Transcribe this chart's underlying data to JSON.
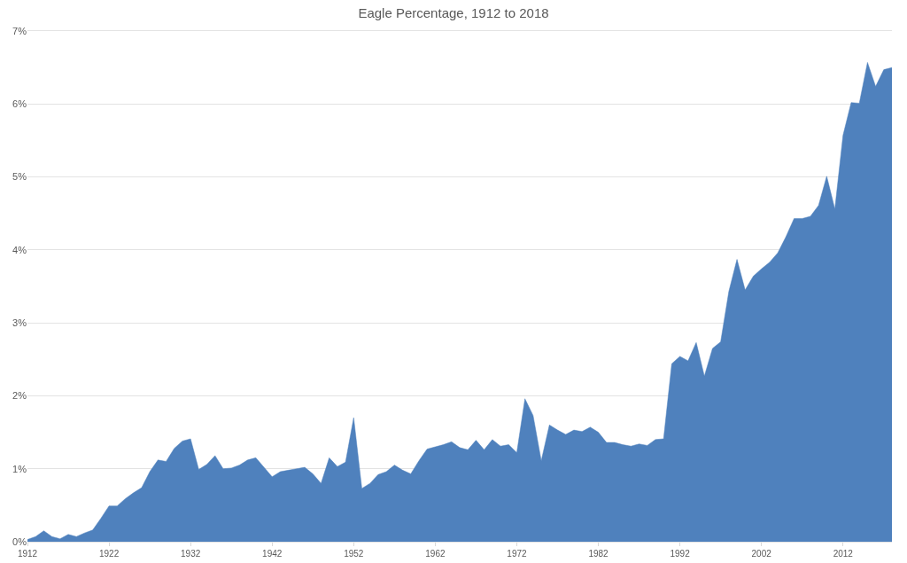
{
  "chart_data": {
    "type": "area",
    "title": "Eagle Percentage, 1912 to 2018",
    "x": [
      1912,
      1913,
      1914,
      1915,
      1916,
      1917,
      1918,
      1919,
      1920,
      1921,
      1922,
      1923,
      1924,
      1925,
      1926,
      1927,
      1928,
      1929,
      1930,
      1931,
      1932,
      1933,
      1934,
      1935,
      1936,
      1937,
      1938,
      1939,
      1940,
      1941,
      1942,
      1943,
      1944,
      1945,
      1946,
      1947,
      1948,
      1949,
      1950,
      1951,
      1952,
      1953,
      1954,
      1955,
      1956,
      1957,
      1958,
      1959,
      1960,
      1961,
      1962,
      1963,
      1964,
      1965,
      1966,
      1967,
      1968,
      1969,
      1970,
      1971,
      1972,
      1973,
      1974,
      1975,
      1976,
      1977,
      1978,
      1979,
      1980,
      1981,
      1982,
      1983,
      1984,
      1985,
      1986,
      1987,
      1988,
      1989,
      1990,
      1991,
      1992,
      1993,
      1994,
      1995,
      1996,
      1997,
      1998,
      1999,
      2000,
      2001,
      2002,
      2003,
      2004,
      2005,
      2006,
      2007,
      2008,
      2009,
      2010,
      2011,
      2012,
      2013,
      2014,
      2015,
      2016,
      2017,
      2018
    ],
    "values": [
      0.03,
      0.07,
      0.15,
      0.07,
      0.04,
      0.1,
      0.07,
      0.12,
      0.16,
      0.32,
      0.49,
      0.49,
      0.59,
      0.67,
      0.74,
      0.96,
      1.12,
      1.1,
      1.28,
      1.38,
      1.41,
      0.99,
      1.06,
      1.18,
      1.0,
      1.01,
      1.05,
      1.12,
      1.15,
      1.02,
      0.89,
      0.96,
      0.98,
      1.0,
      1.02,
      0.93,
      0.8,
      1.15,
      1.03,
      1.09,
      1.7,
      0.73,
      0.8,
      0.92,
      0.96,
      1.05,
      0.98,
      0.93,
      1.11,
      1.27,
      1.3,
      1.33,
      1.37,
      1.29,
      1.26,
      1.39,
      1.26,
      1.4,
      1.31,
      1.33,
      1.22,
      1.96,
      1.73,
      1.11,
      1.6,
      1.53,
      1.47,
      1.53,
      1.51,
      1.57,
      1.5,
      1.36,
      1.36,
      1.33,
      1.31,
      1.34,
      1.32,
      1.4,
      1.41,
      2.44,
      2.54,
      2.48,
      2.73,
      2.27,
      2.65,
      2.74,
      3.43,
      3.87,
      3.45,
      3.64,
      3.74,
      3.83,
      3.96,
      4.18,
      4.43,
      4.43,
      4.46,
      4.61,
      5.01,
      4.56,
      5.57,
      6.02,
      6.01,
      6.57,
      6.24,
      6.47,
      6.5
    ],
    "color": "#4f81bd",
    "xlim": [
      1912,
      2018
    ],
    "xticks": [
      1912,
      1922,
      1932,
      1942,
      1952,
      1962,
      1972,
      1982,
      1992,
      2002,
      2012
    ],
    "ylim": [
      0,
      7
    ],
    "yticks": [
      {
        "value": 0,
        "label": "0%"
      },
      {
        "value": 1,
        "label": "1%"
      },
      {
        "value": 2,
        "label": "2%"
      },
      {
        "value": 3,
        "label": "3%"
      },
      {
        "value": 4,
        "label": "4%"
      },
      {
        "value": 5,
        "label": "5%"
      },
      {
        "value": 6,
        "label": "6%"
      },
      {
        "value": 7,
        "label": "7%"
      }
    ],
    "grid": "y"
  }
}
